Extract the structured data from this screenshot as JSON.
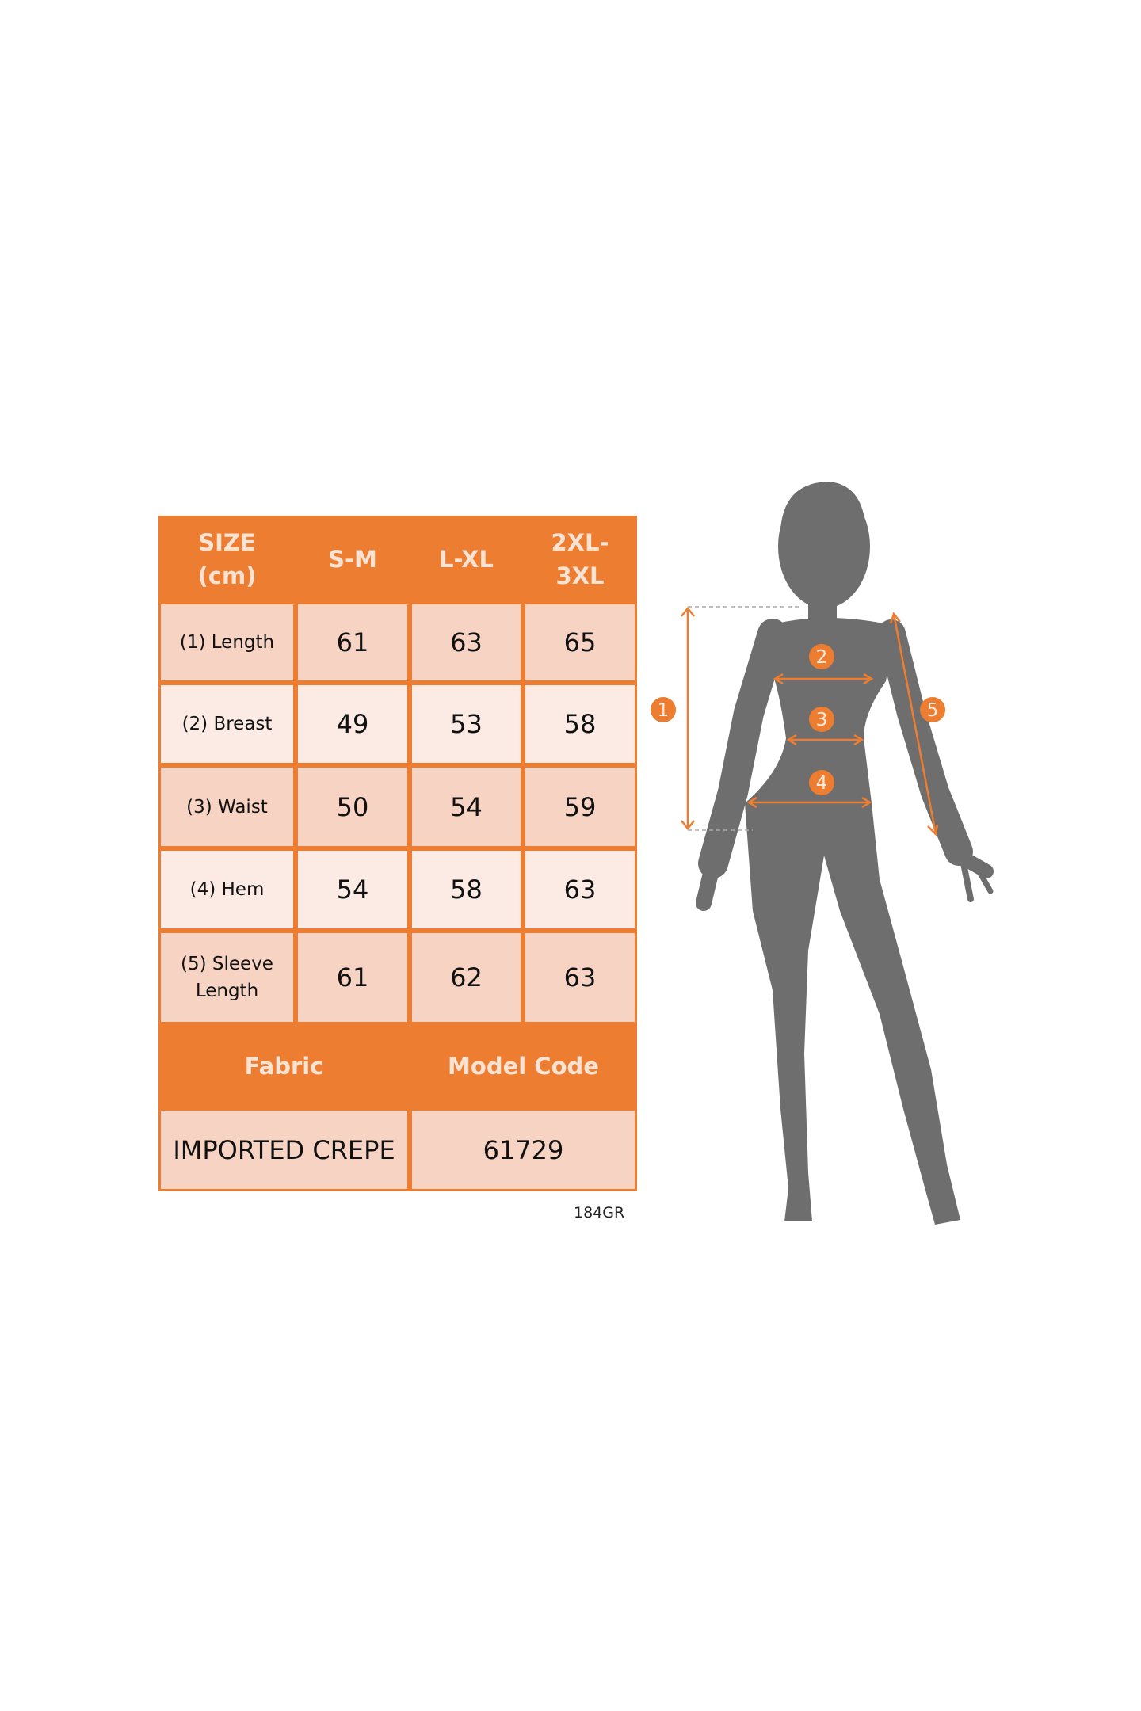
{
  "size_chart": {
    "header": {
      "size_label": "SIZE\n(cm)",
      "sizes": [
        "S-M",
        "L-XL",
        "2XL-\n3XL"
      ]
    },
    "rows": [
      {
        "label": "(1) Length",
        "values": [
          "61",
          "63",
          "65"
        ]
      },
      {
        "label": "(2) Breast",
        "values": [
          "49",
          "53",
          "58"
        ]
      },
      {
        "label": "(3) Waist",
        "values": [
          "50",
          "54",
          "59"
        ]
      },
      {
        "label": "(4) Hem",
        "values": [
          "54",
          "58",
          "63"
        ]
      },
      {
        "label": "(5) Sleeve\nLength",
        "values": [
          "61",
          "62",
          "63"
        ]
      }
    ],
    "info_header": {
      "fabric_label": "Fabric",
      "model_code_label": "Model Code"
    },
    "info_values": {
      "fabric": "IMPORTED CREPE",
      "model_code": "61729"
    }
  },
  "footer_code": "184GR",
  "figure": {
    "markers": [
      "1",
      "2",
      "3",
      "4",
      "5"
    ],
    "colors": {
      "accent": "#ED7D31",
      "silhouette": "#6E6E6E",
      "cell_dark": "#F6D3C3",
      "cell_light": "#FBEBE4"
    }
  }
}
